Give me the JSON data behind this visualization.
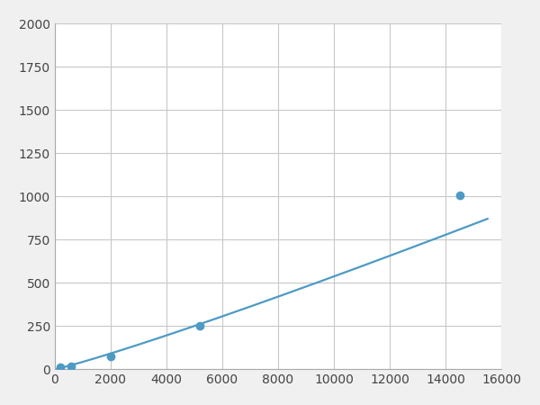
{
  "x": [
    200,
    600,
    2000,
    5200,
    14500
  ],
  "y": [
    10,
    18,
    75,
    250,
    1005
  ],
  "line_color": "#4d9ac5",
  "marker_color": "#4d9ac5",
  "marker_size": 6,
  "line_width": 1.6,
  "xlim": [
    0,
    16000
  ],
  "ylim": [
    0,
    2000
  ],
  "xticks": [
    0,
    2000,
    4000,
    6000,
    8000,
    10000,
    12000,
    14000,
    16000
  ],
  "yticks": [
    0,
    250,
    500,
    750,
    1000,
    1250,
    1500,
    1750,
    2000
  ],
  "grid_color": "#c8c8c8",
  "bg_color": "#ffffff",
  "figure_bg": "#f0f0f0",
  "tick_fontsize": 10,
  "tick_color": "#444444"
}
